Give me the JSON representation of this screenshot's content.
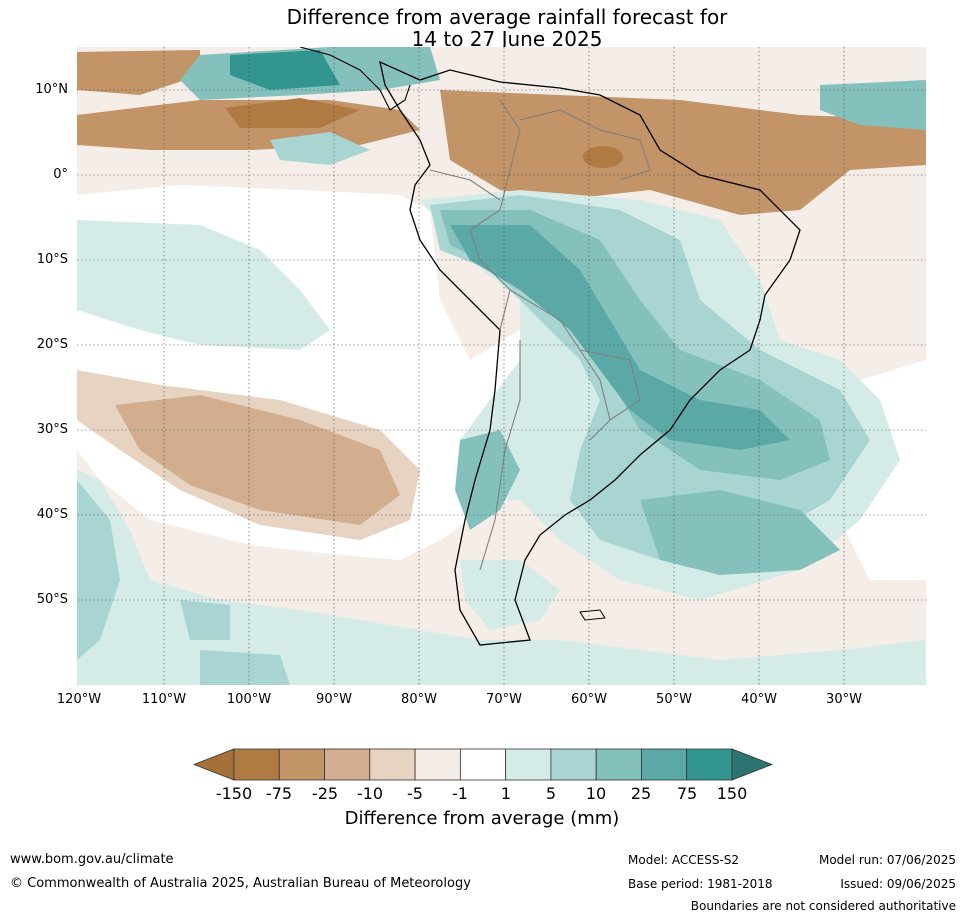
{
  "title": {
    "line1": "Difference from average rainfall forecast for",
    "line2": "14 to 27 June 2025"
  },
  "axes": {
    "lat_labels": [
      "10°N",
      "0°",
      "10°S",
      "20°S",
      "30°S",
      "40°S",
      "50°S"
    ],
    "lon_labels": [
      "120°W",
      "110°W",
      "100°W",
      "90°W",
      "80°W",
      "70°W",
      "60°W",
      "50°W",
      "40°W",
      "30°W"
    ]
  },
  "colorbar": {
    "label": "Difference from average (mm)",
    "ticks": [
      "-150",
      "-75",
      "-25",
      "-10",
      "-5",
      "-1",
      "1",
      "5",
      "10",
      "25",
      "75",
      "150"
    ],
    "colors": [
      "#a5703a",
      "#b07b42",
      "#c29467",
      "#d2ae8e",
      "#e6d3c1",
      "#f5ede7",
      "#ffffff",
      "#d5ebe8",
      "#a8d5d2",
      "#84c1bd",
      "#5aa9a6",
      "#33958f",
      "#2b7471"
    ]
  },
  "footer": {
    "url": "www.bom.gov.au/climate",
    "copyright": "© Commonwealth of Australia 2025, Australian Bureau of Meteorology",
    "model": "Model: ACCESS-S2",
    "base_period": "Base period: 1981-2018",
    "model_run": "Model run: 07/06/2025",
    "issued": "Issued: 09/06/2025",
    "disclaimer": "Boundaries are not considered authoritative"
  }
}
